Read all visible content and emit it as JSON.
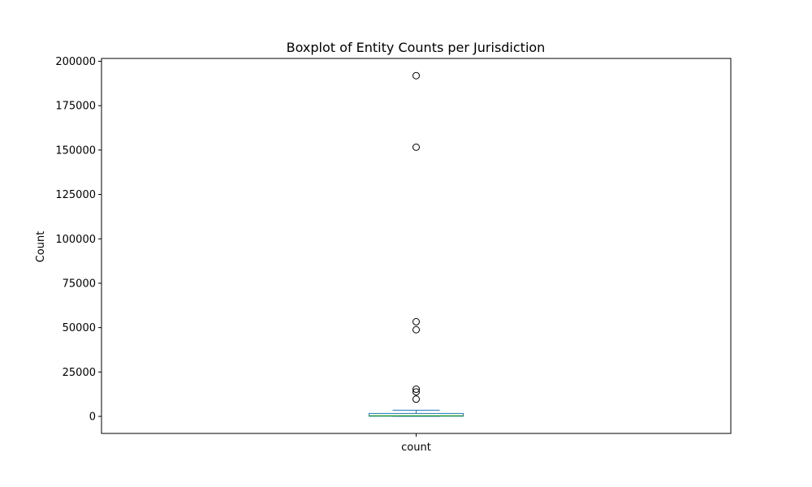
{
  "chart_data": {
    "type": "box",
    "title": "Boxplot of Entity Counts per Jurisdiction",
    "xlabel": "",
    "ylabel": "Count",
    "categories": [
      "count"
    ],
    "ylim": [
      -9600,
      201600
    ],
    "yticks": [
      0,
      25000,
      50000,
      75000,
      100000,
      125000,
      150000,
      175000,
      200000
    ],
    "grid": false,
    "legend": "none",
    "box": {
      "q1": 80,
      "median": 350,
      "q3": 1650,
      "whisker_low": 1,
      "whisker_high": 3500
    },
    "outliers": [
      9700,
      13800,
      15300,
      48800,
      53300,
      151600,
      191900
    ],
    "colors": {
      "box": "#1f77b4",
      "median": "#2ca02c",
      "outlier": "#000000"
    }
  }
}
